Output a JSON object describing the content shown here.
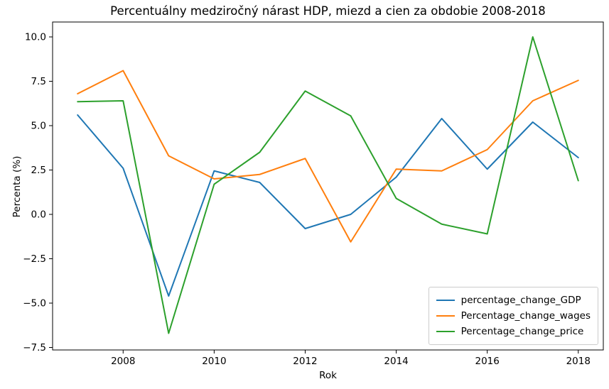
{
  "chart_data": {
    "type": "line",
    "title": "Percentuálny medziročný nárast HDP, miezd a cien za obdobie 2008-2018",
    "xlabel": "Rok",
    "ylabel": "Percenta (%)",
    "x": [
      2007,
      2008,
      2009,
      2010,
      2011,
      2012,
      2013,
      2014,
      2015,
      2016,
      2017,
      2018
    ],
    "series": [
      {
        "name": "percentage_change_GDP",
        "color": "#1f77b4",
        "values": [
          5.6,
          2.6,
          -4.6,
          2.45,
          1.8,
          -0.8,
          0.0,
          2.1,
          5.4,
          2.55,
          5.2,
          3.2
        ]
      },
      {
        "name": "Percentage_change_wages",
        "color": "#ff7f0e",
        "values": [
          6.8,
          8.1,
          3.3,
          2.0,
          2.25,
          3.15,
          -1.55,
          2.55,
          2.45,
          3.65,
          6.4,
          7.55
        ]
      },
      {
        "name": "Percentage_change_price",
        "color": "#2ca02c",
        "values": [
          6.35,
          6.4,
          -6.7,
          1.7,
          3.5,
          6.95,
          5.55,
          0.9,
          -0.55,
          -1.1,
          10.0,
          1.9
        ]
      }
    ],
    "xlim": [
      2006.45,
      2018.55
    ],
    "ylim": [
      -7.64,
      10.84
    ],
    "xticks": [
      2008,
      2010,
      2012,
      2014,
      2016,
      2018
    ],
    "xtick_labels": [
      "2008",
      "2010",
      "2012",
      "2014",
      "2016",
      "2018"
    ],
    "yticks": [
      10.0,
      7.5,
      5.0,
      2.5,
      0.0,
      -2.5,
      -5.0,
      -7.5
    ],
    "ytick_labels": [
      "10.0",
      "7.5",
      "5.0",
      "2.5",
      "0.0",
      "−2.5",
      "−5.0",
      "−7.5"
    ],
    "grid": false,
    "legend_position": "lower right",
    "axis_color": "#000000",
    "background_color": "#ffffff"
  }
}
